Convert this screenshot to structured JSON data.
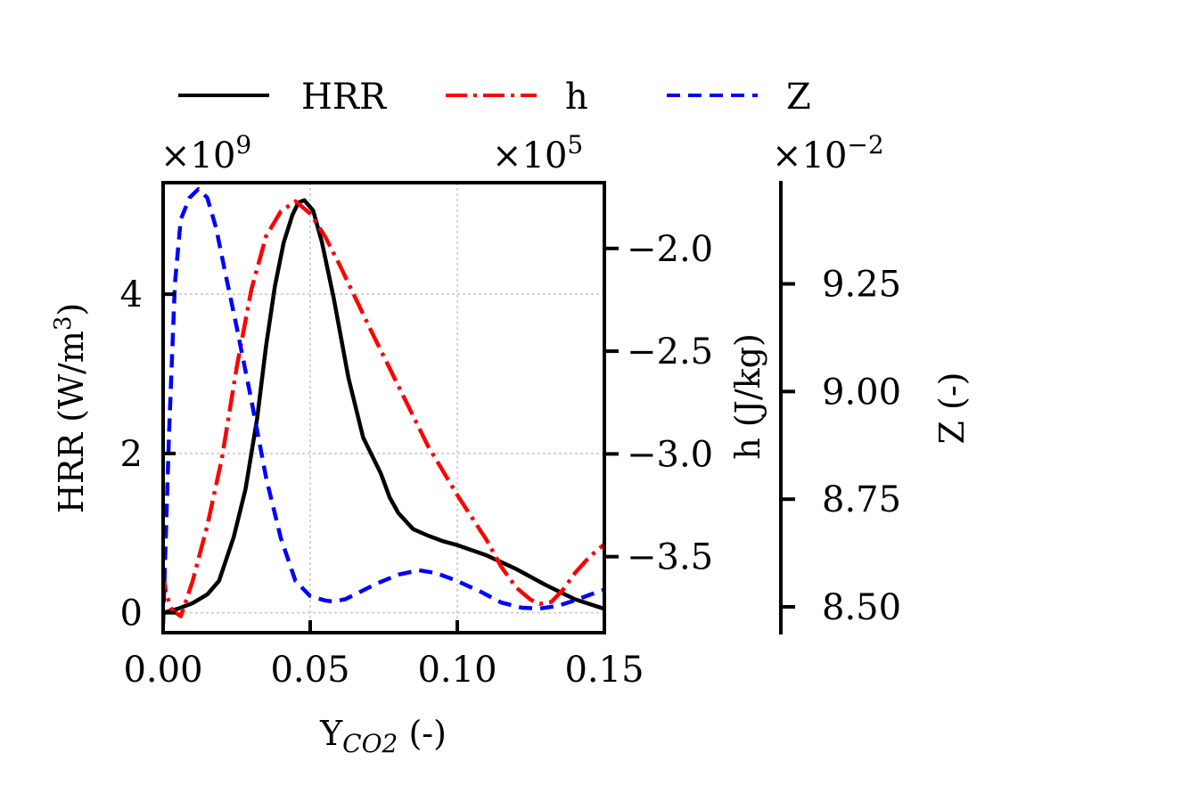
{
  "chart_data": {
    "type": "line",
    "xlabel": "Y",
    "xlabel_sub": "CO2",
    "xlabel_suffix": " (-)",
    "xlim": [
      0.0,
      0.15
    ],
    "x_ticks": [
      0.0,
      0.05,
      0.1,
      0.15
    ],
    "x_tick_labels": [
      "0.00",
      "0.05",
      "0.10",
      "0.15"
    ],
    "grid": true,
    "legend_position": "top",
    "axes": [
      {
        "id": "hrr",
        "label": "HRR (W/m",
        "label_sup": "3",
        "label_suffix": ")",
        "multiplier_base": "×10",
        "multiplier_exp": "9",
        "ylim": [
          -0.25,
          5.4
        ],
        "ticks": [
          0,
          2,
          4
        ],
        "tick_labels": [
          "0",
          "2",
          "4"
        ]
      },
      {
        "id": "h",
        "label": "h (J/kg)",
        "multiplier_base": "×10",
        "multiplier_exp": "5",
        "ylim": [
          -3.87,
          -1.68
        ],
        "ticks": [
          -3.5,
          -3.0,
          -2.5,
          -2.0
        ],
        "tick_labels": [
          "−3.5",
          "−3.0",
          "−2.5",
          "−2.0"
        ]
      },
      {
        "id": "z",
        "label": "Z (-)",
        "multiplier_base": "×10",
        "multiplier_exp": "−2",
        "ylim": [
          8.44,
          9.485
        ],
        "ticks": [
          8.5,
          8.75,
          9.0,
          9.25
        ],
        "tick_labels": [
          "8.50",
          "8.75",
          "9.00",
          "9.25"
        ]
      }
    ],
    "series": [
      {
        "name": "HRR",
        "axis": "hrr",
        "color": "#000000",
        "dash": "solid",
        "x": [
          0.0,
          0.005,
          0.01,
          0.015,
          0.019,
          0.024,
          0.028,
          0.032,
          0.035,
          0.038,
          0.041,
          0.044,
          0.046,
          0.048,
          0.051,
          0.054,
          0.058,
          0.063,
          0.068,
          0.074,
          0.077,
          0.08,
          0.085,
          0.09,
          0.095,
          0.1,
          0.11,
          0.12,
          0.13,
          0.14,
          0.15
        ],
        "y": [
          0.0,
          0.05,
          0.12,
          0.23,
          0.4,
          0.95,
          1.55,
          2.45,
          3.35,
          4.1,
          4.65,
          5.0,
          5.15,
          5.18,
          5.05,
          4.65,
          3.95,
          2.95,
          2.2,
          1.75,
          1.45,
          1.25,
          1.05,
          0.97,
          0.9,
          0.85,
          0.72,
          0.55,
          0.35,
          0.17,
          0.05
        ]
      },
      {
        "name": "h",
        "axis": "h",
        "color": "#ff0000",
        "dash": "dashdot",
        "x": [
          0.0,
          0.001,
          0.003,
          0.006,
          0.01,
          0.015,
          0.02,
          0.025,
          0.03,
          0.035,
          0.04,
          0.045,
          0.05,
          0.055,
          0.06,
          0.07,
          0.08,
          0.09,
          0.1,
          0.11,
          0.115,
          0.12,
          0.125,
          0.128,
          0.132,
          0.136,
          0.14,
          0.145,
          0.15
        ],
        "y": [
          -3.57,
          -3.68,
          -3.76,
          -3.79,
          -3.62,
          -3.35,
          -3.02,
          -2.58,
          -2.2,
          -1.94,
          -1.82,
          -1.77,
          -1.83,
          -1.94,
          -2.08,
          -2.38,
          -2.67,
          -2.96,
          -3.2,
          -3.42,
          -3.55,
          -3.65,
          -3.71,
          -3.73,
          -3.72,
          -3.66,
          -3.58,
          -3.5,
          -3.44
        ]
      },
      {
        "name": "Z",
        "axis": "z",
        "color": "#0000ff",
        "dash": "dashed",
        "x": [
          0.0,
          0.002,
          0.004,
          0.006,
          0.009,
          0.012,
          0.015,
          0.018,
          0.021,
          0.025,
          0.03,
          0.035,
          0.04,
          0.045,
          0.05,
          0.055,
          0.058,
          0.062,
          0.067,
          0.073,
          0.08,
          0.087,
          0.093,
          0.1,
          0.108,
          0.115,
          0.122,
          0.128,
          0.134,
          0.14,
          0.145,
          0.15
        ],
        "y": [
          8.46,
          8.9,
          9.25,
          9.4,
          9.45,
          9.47,
          9.45,
          9.38,
          9.28,
          9.15,
          8.98,
          8.8,
          8.66,
          8.56,
          8.525,
          8.515,
          8.512,
          8.518,
          8.535,
          8.555,
          8.575,
          8.585,
          8.578,
          8.56,
          8.535,
          8.51,
          8.498,
          8.496,
          8.502,
          8.515,
          8.528,
          8.54
        ]
      }
    ]
  }
}
